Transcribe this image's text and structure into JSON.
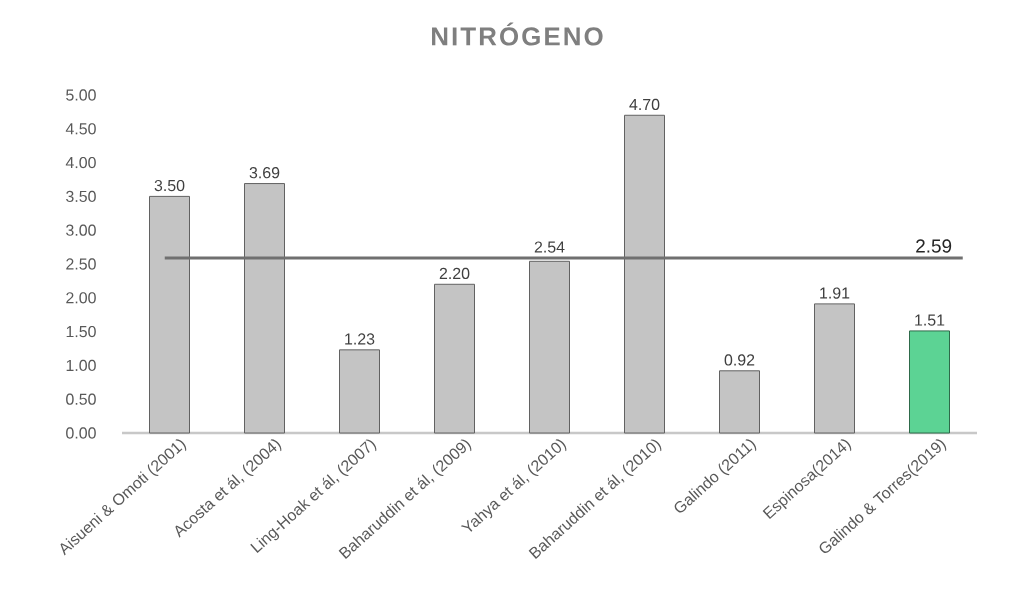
{
  "chart_data": {
    "type": "bar",
    "title": "NITRÓGENO",
    "categories": [
      "Aisueni & Omoti (2001)",
      "Acosta et ál, (2004)",
      "Ling-Hoak et ál, (2007)",
      "Baharuddin et ál, (2009)",
      "Yahya et ál, (2010)",
      "Baharuddin et ál, (2010)",
      "Galindo (2011)",
      "Espinosa(2014)",
      "Galindo & Torres(2019)"
    ],
    "values": [
      3.5,
      3.69,
      1.23,
      2.2,
      2.54,
      4.7,
      0.92,
      1.91,
      1.51
    ],
    "value_labels": [
      "3.50",
      "3.69",
      "1.23",
      "2.20",
      "2.54",
      "4.70",
      "0.92",
      "1.91",
      "1.51"
    ],
    "colors": [
      "#c4c4c4",
      "#c4c4c4",
      "#c4c4c4",
      "#c4c4c4",
      "#c4c4c4",
      "#c4c4c4",
      "#c4c4c4",
      "#c4c4c4",
      "#5cd394"
    ],
    "ylim": [
      0,
      5
    ],
    "yticks": [
      {
        "value": 0,
        "label": "0.00"
      },
      {
        "value": 0.5,
        "label": "0.50"
      },
      {
        "value": 1,
        "label": "1.00"
      },
      {
        "value": 1.5,
        "label": "1.50"
      },
      {
        "value": 2,
        "label": "2.00"
      },
      {
        "value": 2.5,
        "label": "2.50"
      },
      {
        "value": 3,
        "label": "3.00"
      },
      {
        "value": 3.5,
        "label": "3.50"
      },
      {
        "value": 4,
        "label": "4.00"
      },
      {
        "value": 4.5,
        "label": "4.50"
      },
      {
        "value": 5,
        "label": "5.00"
      }
    ],
    "ref_lines": [
      {
        "axis": "y",
        "value": 2.59,
        "label": "2.59",
        "color": "#707070"
      }
    ]
  }
}
